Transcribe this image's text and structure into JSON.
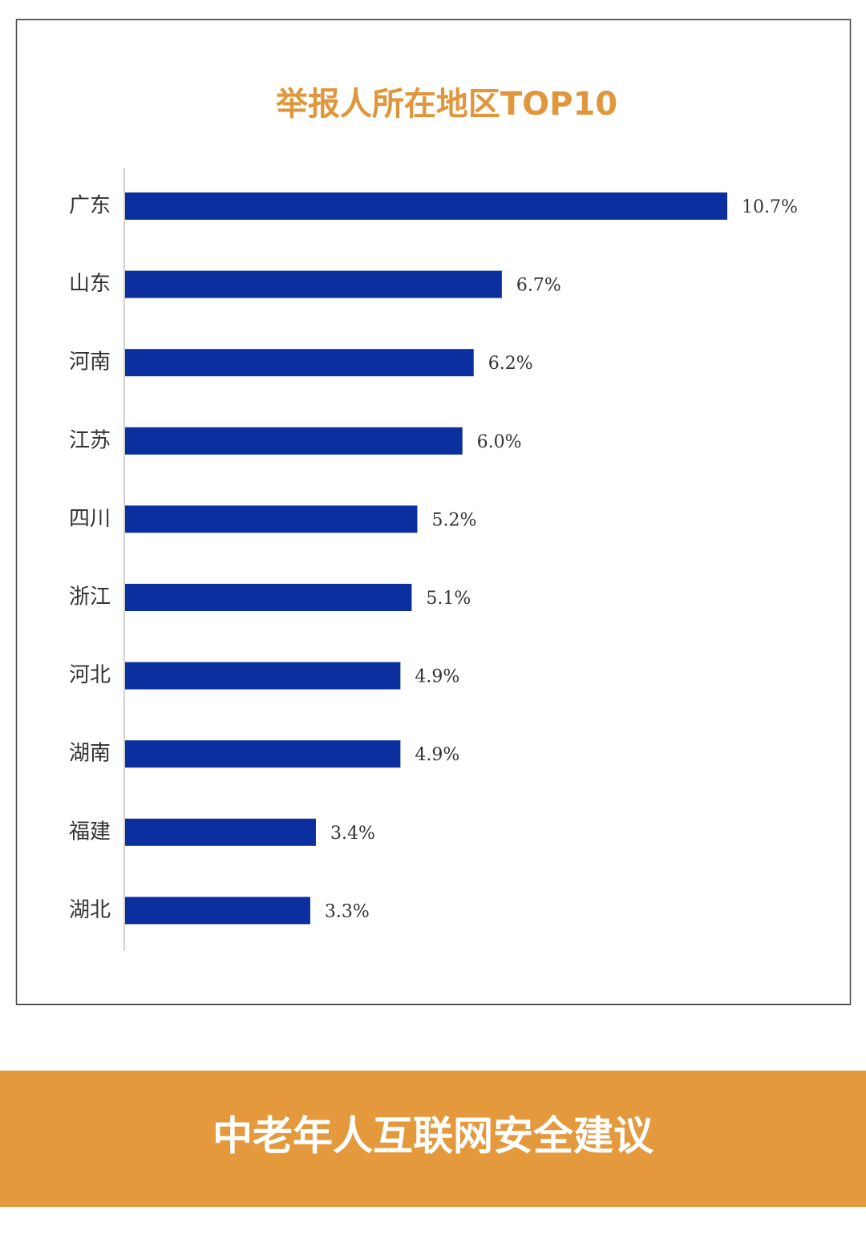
{
  "chart_data": {
    "type": "bar",
    "orientation": "horizontal",
    "title": "举报人所在地区TOP10",
    "categories": [
      "广东",
      "山东",
      "河南",
      "江苏",
      "四川",
      "浙江",
      "河北",
      "湖南",
      "福建",
      "湖北"
    ],
    "values": [
      10.7,
      6.7,
      6.2,
      6.0,
      5.2,
      5.1,
      4.9,
      4.9,
      3.4,
      3.3
    ],
    "value_labels": [
      "10.7%",
      "6.7%",
      "6.2%",
      "6.0%",
      "5.2%",
      "5.1%",
      "4.9%",
      "4.9%",
      "3.4%",
      "3.3%"
    ],
    "color": "#0b2f9f"
  },
  "banner": {
    "text": "中老年人互联网安全建议"
  }
}
